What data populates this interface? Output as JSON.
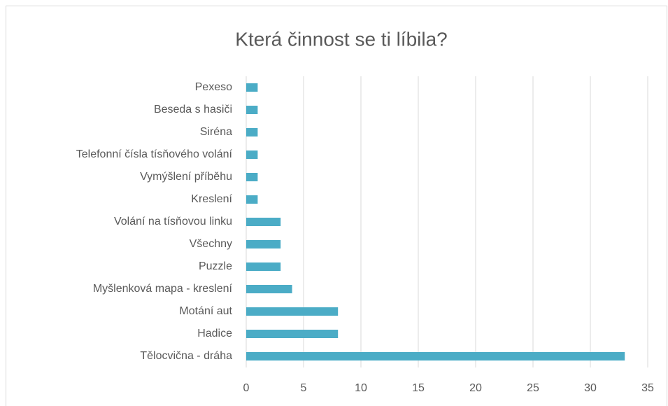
{
  "chart_data": {
    "type": "barh",
    "title": "Která činnost se ti líbila?",
    "categories": [
      "Pexeso",
      "Beseda s hasiči",
      "Siréna",
      "Telefonní čísla tísňového volání",
      "Vymýšlení příběhu",
      "Kreslení",
      "Volání na tísňovou linku",
      "Všechny",
      "Puzzle",
      "Myšlenková mapa - kreslení",
      "Motání aut",
      "Hadice",
      "Tělocvična - dráha"
    ],
    "values": [
      1,
      1,
      1,
      1,
      1,
      1,
      3,
      3,
      3,
      4,
      8,
      8,
      33
    ],
    "color": "#4bacc6",
    "xlim": [
      0,
      35
    ],
    "xticks": [
      0,
      5,
      10,
      15,
      20,
      25,
      30,
      35
    ],
    "grid": true
  }
}
